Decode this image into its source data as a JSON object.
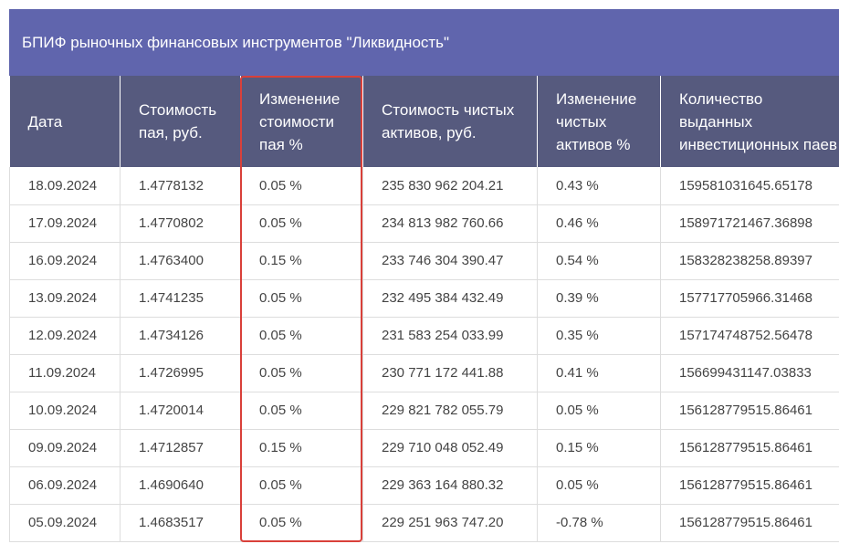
{
  "title": "БПИФ рыночных финансовых инструментов \"Ликвидность\"",
  "columns": [
    "Дата",
    "Стоимость пая, руб.",
    "Изменение стоимости пая %",
    "Стоимость чистых активов, руб.",
    "Изменение чистых активов %",
    "Количество выданных инвестиционных паев"
  ],
  "rows": [
    [
      "18.09.2024",
      "1.4778132",
      "0.05 %",
      "235 830 962 204.21",
      "0.43 %",
      "159581031645.65178"
    ],
    [
      "17.09.2024",
      "1.4770802",
      "0.05 %",
      "234 813 982 760.66",
      "0.46 %",
      "158971721467.36898"
    ],
    [
      "16.09.2024",
      "1.4763400",
      "0.15 %",
      "233 746 304 390.47",
      "0.54 %",
      "158328238258.89397"
    ],
    [
      "13.09.2024",
      "1.4741235",
      "0.05 %",
      "232 495 384 432.49",
      "0.39 %",
      "157717705966.31468"
    ],
    [
      "12.09.2024",
      "1.4734126",
      "0.05 %",
      "231 583 254 033.99",
      "0.35 %",
      "157174748752.56478"
    ],
    [
      "11.09.2024",
      "1.4726995",
      "0.05 %",
      "230 771 172 441.88",
      "0.41 %",
      "156699431147.03833"
    ],
    [
      "10.09.2024",
      "1.4720014",
      "0.05 %",
      "229 821 782 055.79",
      "0.05 %",
      "156128779515.86461"
    ],
    [
      "09.09.2024",
      "1.4712857",
      "0.15 %",
      "229 710 048 052.49",
      "0.15 %",
      "156128779515.86461"
    ],
    [
      "06.09.2024",
      "1.4690640",
      "0.05 %",
      "229 363 164 880.32",
      "0.05 %",
      "156128779515.86461"
    ],
    [
      "05.09.2024",
      "1.4683517",
      "0.05 %",
      "229 251 963 747.20",
      "-0.78 %",
      "156128779515.86461"
    ]
  ],
  "colors": {
    "title_bg": "#6065ad",
    "header_bg": "#565a7e",
    "highlight_border": "#d9403a"
  }
}
